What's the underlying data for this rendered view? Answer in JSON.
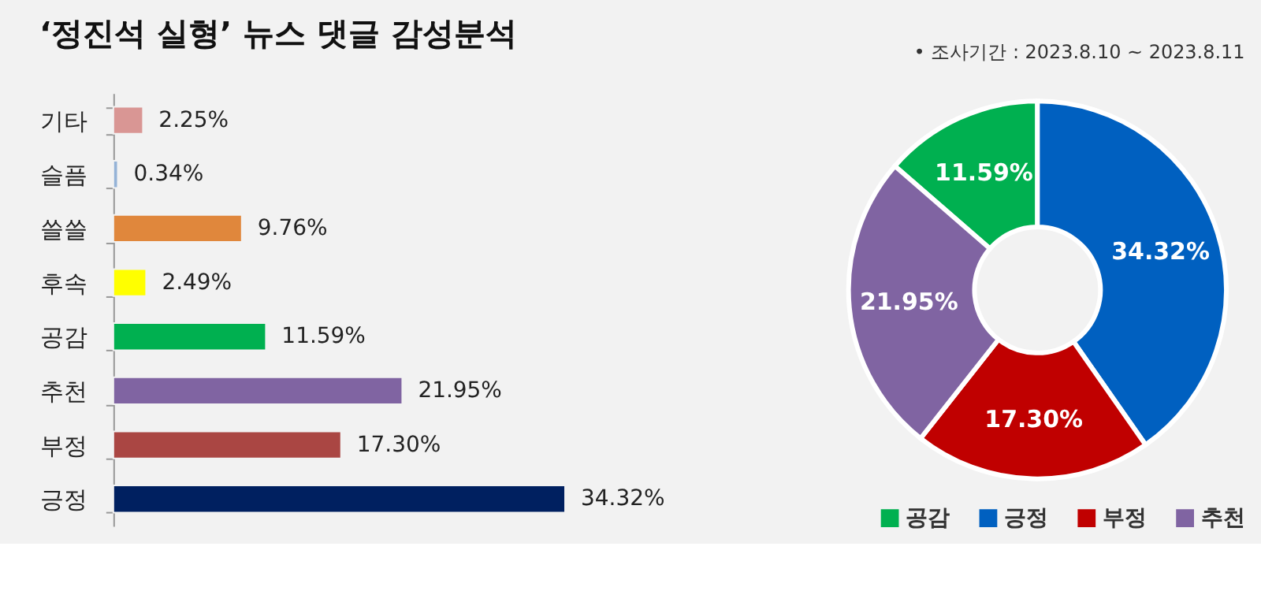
{
  "chart_data": [
    {
      "type": "bar",
      "title": "‘정진석 실형’ 뉴스 댓글 감성분석",
      "orientation": "horizontal",
      "categories": [
        "기타",
        "슬픔",
        "쓸쓸",
        "후속",
        "공감",
        "추천",
        "부정",
        "긍정"
      ],
      "values": [
        2.25,
        0.34,
        9.76,
        2.49,
        11.59,
        21.95,
        17.3,
        34.32
      ],
      "colors": [
        "#d99694",
        "#95b3d7",
        "#e0873c",
        "#ffff00",
        "#00b050",
        "#8064a2",
        "#aa4643",
        "#002060"
      ],
      "value_labels": [
        "2.25%",
        "0.34%",
        "9.76%",
        "2.49%",
        "11.59%",
        "21.95%",
        "17.30%",
        "34.32%"
      ],
      "grid": false,
      "legend": false
    },
    {
      "type": "donut",
      "annotations": [
        "•    조사기간 : 2023.8.10 ~ 2023.8.11"
      ],
      "categories": [
        "공감",
        "긍정",
        "부정",
        "추천"
      ],
      "values": [
        11.59,
        34.32,
        17.3,
        21.95
      ],
      "colors": [
        "#00b050",
        "#0060c0",
        "#c00000",
        "#8064a2"
      ],
      "value_labels": [
        "11.59%",
        "34.32%",
        "17.30%",
        "21.95%"
      ],
      "legend": "bottom"
    }
  ]
}
